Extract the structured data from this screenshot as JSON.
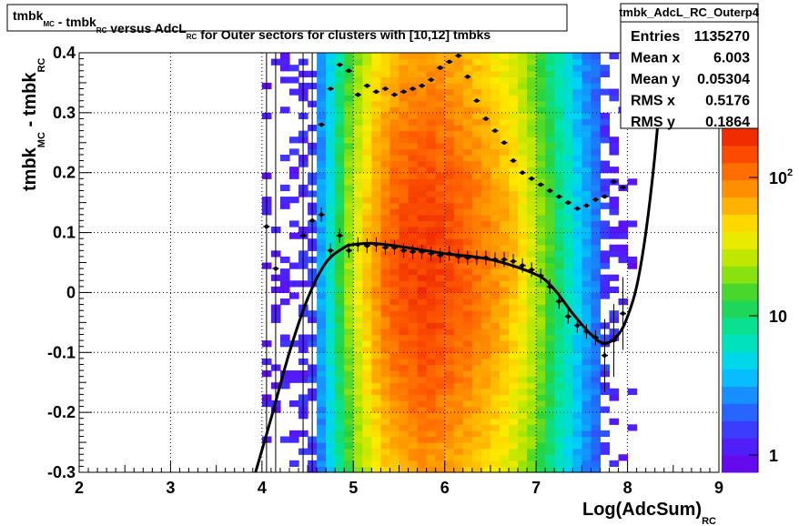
{
  "chart_data": {
    "type": "heatmap",
    "title": "tmbk_MC - tmbk_RC versus AdcL_RC for Outer sectors for clusters with [10,12] tmbks",
    "title_parts": [
      {
        "text": "tmbk",
        "sub": "MC"
      },
      {
        "text": " - tmbk",
        "sub": "RC"
      },
      {
        "text": " versus AdcL",
        "sub": "RC"
      },
      {
        "text": " for Outer sectors for clusters with [10,12] tmbks"
      }
    ],
    "xlabel": {
      "main": "Log(AdcSum)",
      "sub": "RC"
    },
    "ylabel": {
      "p1": "tmbk",
      "s1": "MC",
      "p2": " - tmbk",
      "s2": "RC"
    },
    "xlim": [
      2,
      9
    ],
    "ylim": [
      -0.3,
      0.4
    ],
    "x_ticks": [
      "2",
      "3",
      "4",
      "5",
      "6",
      "7",
      "8",
      "9"
    ],
    "y_ticks": [
      "-0.3",
      "-0.2",
      "-0.1",
      "0",
      "0.1",
      "0.2",
      "0.3",
      "0.4"
    ],
    "grid": true,
    "colorbar": {
      "scale": "log",
      "labels": [
        {
          "base": "1",
          "exp": ""
        },
        {
          "base": "10",
          "exp": ""
        },
        {
          "base": "10",
          "exp": "2"
        }
      ]
    },
    "density_profile": {
      "x": [
        4.0,
        4.5,
        4.7,
        4.9,
        5.1,
        5.3,
        5.5,
        5.8,
        6.1,
        6.4,
        6.7,
        6.9,
        7.1,
        7.3,
        7.5,
        7.7,
        7.9,
        8.1
      ],
      "level": [
        0.03,
        0.12,
        0.3,
        0.55,
        0.72,
        0.85,
        0.92,
        0.96,
        0.92,
        0.86,
        0.78,
        0.68,
        0.55,
        0.42,
        0.28,
        0.18,
        0.08,
        0.03
      ]
    },
    "stats_box": {
      "name": "tmbk_AdcL_RC_Outerp4",
      "rows": [
        {
          "label": "Entries",
          "value": "1135270"
        },
        {
          "label": "Mean x",
          "value": "6.003"
        },
        {
          "label": "Mean y",
          "value": "0.05304"
        },
        {
          "label": "RMS x",
          "value": "0.5176"
        },
        {
          "label": "RMS y",
          "value": "0.1864"
        }
      ]
    },
    "mean_profile": {
      "x": [
        4.05,
        4.15,
        4.45,
        4.55,
        4.65,
        4.75,
        4.85,
        4.95,
        5.05,
        5.15,
        5.25,
        5.35,
        5.45,
        5.55,
        5.65,
        5.75,
        5.85,
        5.95,
        6.05,
        6.15,
        6.25,
        6.35,
        6.45,
        6.55,
        6.65,
        6.75,
        6.85,
        6.95,
        7.05,
        7.15,
        7.25,
        7.35,
        7.45,
        7.55,
        7.65,
        7.75,
        7.85,
        7.95
      ],
      "y": [
        0.11,
        0.04,
        0.095,
        0.12,
        0.13,
        0.07,
        0.095,
        0.07,
        0.08,
        0.078,
        0.08,
        0.075,
        0.075,
        0.07,
        0.068,
        0.068,
        0.065,
        0.062,
        0.065,
        0.06,
        0.058,
        0.058,
        0.058,
        0.055,
        0.055,
        0.052,
        0.045,
        0.038,
        0.028,
        0.01,
        -0.015,
        -0.04,
        -0.055,
        -0.065,
        -0.075,
        -0.105,
        -0.08,
        -0.035
      ]
    },
    "rms_profile": {
      "x": [
        4.65,
        4.75,
        4.85,
        4.95,
        5.05,
        5.15,
        5.25,
        5.35,
        5.45,
        5.55,
        5.65,
        5.75,
        5.85,
        5.95,
        6.05,
        6.15,
        6.25,
        6.35,
        6.45,
        6.55,
        6.65,
        6.75,
        6.85,
        6.95,
        7.05,
        7.15,
        7.25,
        7.35,
        7.45,
        7.55,
        7.65,
        7.75,
        7.85,
        7.95
      ],
      "y": [
        0.28,
        0.34,
        0.38,
        0.37,
        0.33,
        0.345,
        0.335,
        0.34,
        0.33,
        0.335,
        0.34,
        0.345,
        0.355,
        0.375,
        0.385,
        0.395,
        0.36,
        0.32,
        0.29,
        0.27,
        0.25,
        0.22,
        0.2,
        0.19,
        0.18,
        0.17,
        0.16,
        0.15,
        0.14,
        0.145,
        0.155,
        0.16,
        0.185,
        0.175
      ]
    },
    "fit_curve": {
      "x": [
        3.93,
        4.1,
        4.3,
        4.5,
        4.7,
        4.9,
        5.0,
        5.2,
        5.5,
        6.0,
        6.5,
        7.0,
        7.2,
        7.4,
        7.6,
        7.75,
        7.9,
        8.0,
        8.1,
        8.2,
        8.3,
        8.4
      ],
      "y": [
        -0.3,
        -0.21,
        -0.1,
        -0.01,
        0.05,
        0.075,
        0.08,
        0.082,
        0.077,
        0.065,
        0.055,
        0.03,
        0.005,
        -0.035,
        -0.07,
        -0.085,
        -0.07,
        -0.04,
        0.01,
        0.1,
        0.23,
        0.4
      ]
    }
  }
}
